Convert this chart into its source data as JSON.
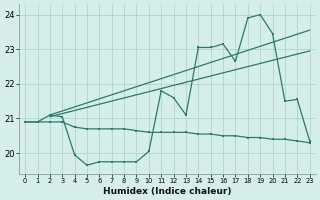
{
  "xlabel": "Humidex (Indice chaleur)",
  "x": [
    0,
    1,
    2,
    3,
    4,
    5,
    6,
    7,
    8,
    9,
    10,
    11,
    12,
    13,
    14,
    15,
    16,
    17,
    18,
    19,
    20,
    21,
    22,
    23
  ],
  "line_flat": [
    20.9,
    20.9,
    20.9,
    20.9,
    20.75,
    20.7,
    20.7,
    20.7,
    20.7,
    20.65,
    20.6,
    20.6,
    20.6,
    20.6,
    20.55,
    20.55,
    20.5,
    20.5,
    20.45,
    20.45,
    20.4,
    20.4,
    20.35,
    20.3
  ],
  "line_zigzag": [
    20.9,
    20.9,
    21.1,
    21.05,
    19.95,
    19.65,
    19.75,
    19.75,
    19.75,
    19.75,
    20.05,
    21.8,
    21.6,
    21.1,
    23.05,
    23.05,
    23.15,
    22.65,
    23.9,
    24.0,
    23.45,
    21.5,
    21.55,
    20.35
  ],
  "trend1_x": [
    2,
    23
  ],
  "trend1_y": [
    21.1,
    23.55
  ],
  "trend2_x": [
    2,
    23
  ],
  "trend2_y": [
    21.05,
    22.95
  ],
  "line_color": "#2a7a6a",
  "bg_color": "#d6eeea",
  "grid_color": "#aacece",
  "ylim": [
    19.4,
    24.3
  ],
  "xlim": [
    -0.5,
    23.5
  ],
  "yticks": [
    20,
    21,
    22,
    23,
    24
  ],
  "xticks": [
    0,
    1,
    2,
    3,
    4,
    5,
    6,
    7,
    8,
    9,
    10,
    11,
    12,
    13,
    14,
    15,
    16,
    17,
    18,
    19,
    20,
    21,
    22,
    23
  ]
}
